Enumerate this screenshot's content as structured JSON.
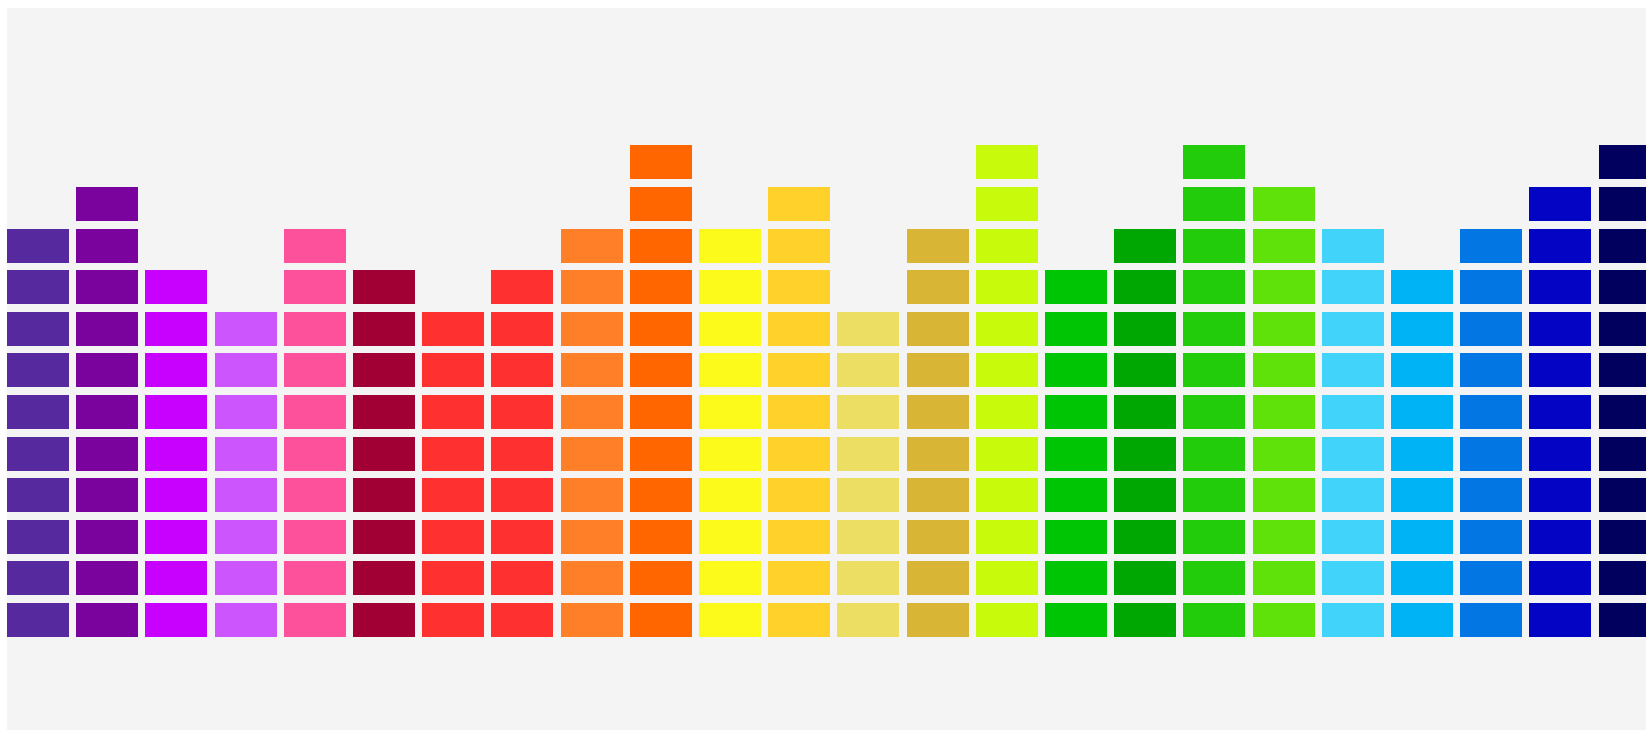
{
  "equalizer": {
    "columns": [
      {
        "level": 10,
        "color": "#56299e"
      },
      {
        "level": 11,
        "color": "#7b039d"
      },
      {
        "level": 9,
        "color": "#c800fe"
      },
      {
        "level": 8,
        "color": "#cd55fe"
      },
      {
        "level": 10,
        "color": "#fd519c"
      },
      {
        "level": 9,
        "color": "#a00034"
      },
      {
        "level": 8,
        "color": "#ff3030"
      },
      {
        "level": 9,
        "color": "#ff3030"
      },
      {
        "level": 10,
        "color": "#ff7f28"
      },
      {
        "level": 12,
        "color": "#ff6600"
      },
      {
        "level": 10,
        "color": "#fcfa1a"
      },
      {
        "level": 11,
        "color": "#ffd12a"
      },
      {
        "level": 8,
        "color": "#ecde62"
      },
      {
        "level": 10,
        "color": "#d9b536"
      },
      {
        "level": 12,
        "color": "#c8fa0b"
      },
      {
        "level": 9,
        "color": "#00c505"
      },
      {
        "level": 10,
        "color": "#00a601"
      },
      {
        "level": 12,
        "color": "#23cc0b"
      },
      {
        "level": 11,
        "color": "#5fe20a"
      },
      {
        "level": 10,
        "color": "#42d3fb"
      },
      {
        "level": 9,
        "color": "#00b3f5"
      },
      {
        "level": 10,
        "color": "#0276e2"
      },
      {
        "level": 11,
        "color": "#0304c4"
      },
      {
        "level": 12,
        "color": "#01005f"
      }
    ]
  }
}
